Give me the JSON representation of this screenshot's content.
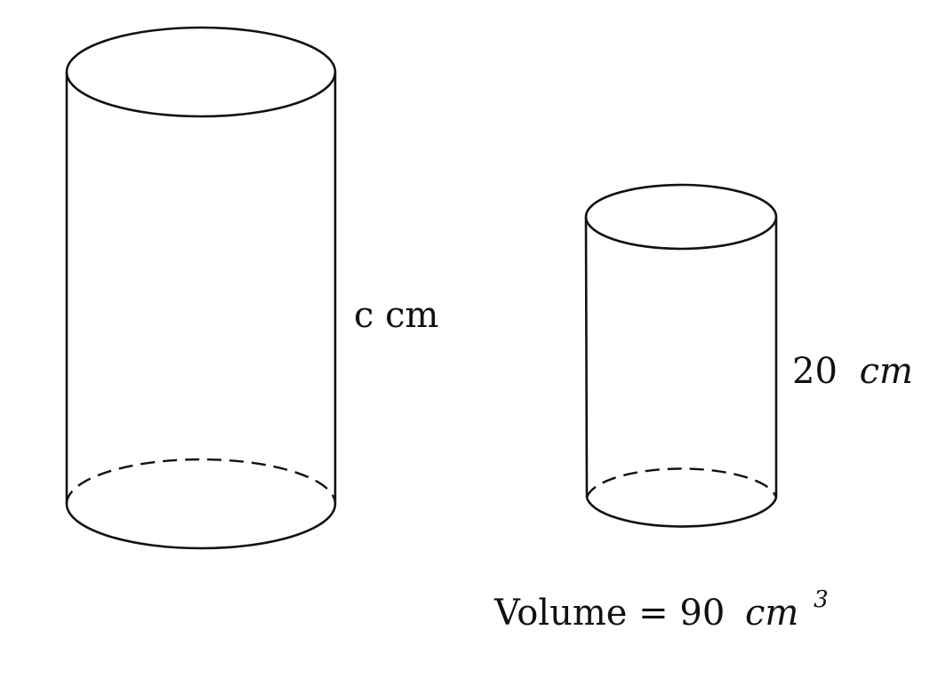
{
  "large_cylinder": {
    "height_label": "c cm"
  },
  "small_cylinder": {
    "height_value": "20",
    "height_unit": "cm",
    "volume_prefix": "Volume = 90",
    "volume_unit": "cm",
    "volume_exponent": "3"
  },
  "colors": {
    "stroke": "#111111",
    "background": "#ffffff"
  }
}
